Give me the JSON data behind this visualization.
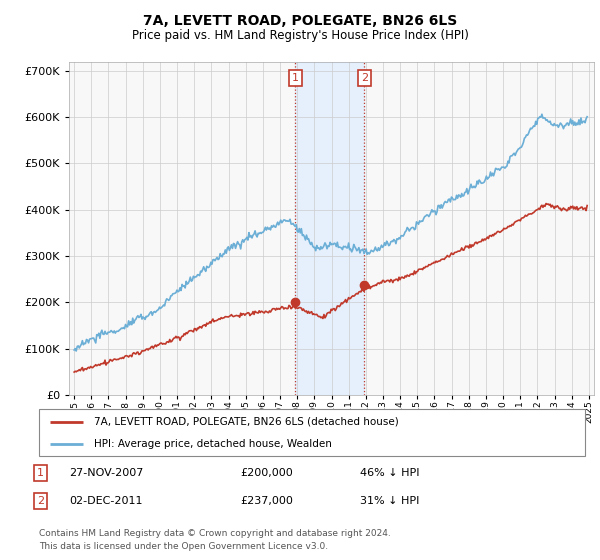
{
  "title": "7A, LEVETT ROAD, POLEGATE, BN26 6LS",
  "subtitle": "Price paid vs. HM Land Registry's House Price Index (HPI)",
  "legend_line1": "7A, LEVETT ROAD, POLEGATE, BN26 6LS (detached house)",
  "legend_line2": "HPI: Average price, detached house, Wealden",
  "sale1_date": "27-NOV-2007",
  "sale1_price": 200000,
  "sale1_label": "46% ↓ HPI",
  "sale2_date": "02-DEC-2011",
  "sale2_price": 237000,
  "sale2_label": "31% ↓ HPI",
  "footer1": "Contains HM Land Registry data © Crown copyright and database right 2024.",
  "footer2": "This data is licensed under the Open Government Licence v3.0.",
  "hpi_color": "#6baed6",
  "price_color": "#c0392b",
  "vline_color": "#c0392b",
  "shade_color": "#ddeeff",
  "bg_color": "#f0f0f0",
  "plot_bg": "#f8f8f8",
  "ylim_min": 0,
  "ylim_max": 720000,
  "xlim_min": 1994.7,
  "xlim_max": 2025.3,
  "sale1_x": 2007.9,
  "sale2_x": 2011.92
}
